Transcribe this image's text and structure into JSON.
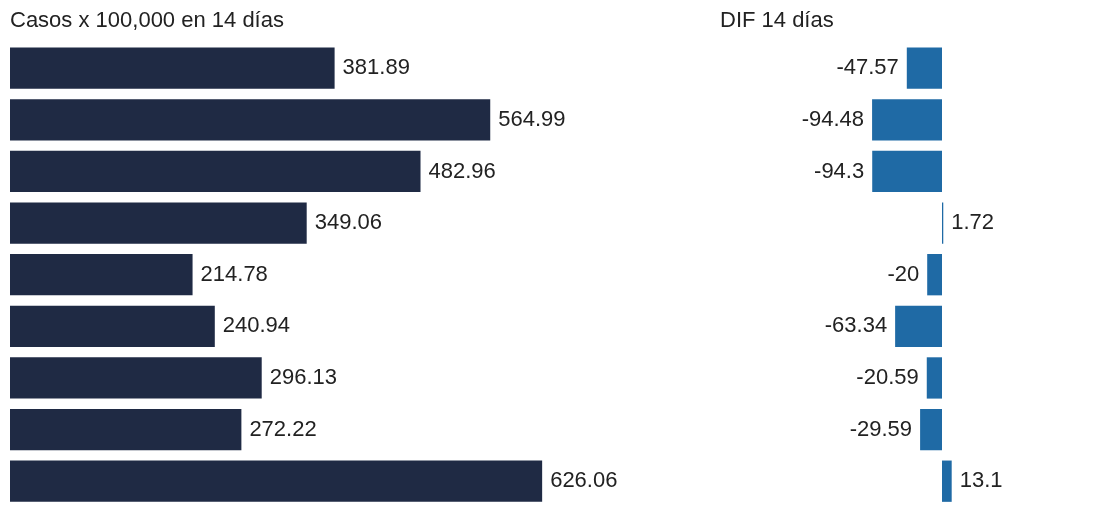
{
  "chart_data": [
    {
      "type": "bar",
      "orientation": "horizontal",
      "title": "Casos x 100,000 en 14 días",
      "categories": [
        null,
        null,
        null,
        null,
        null,
        null,
        null,
        null,
        null
      ],
      "values": [
        381.89,
        564.99,
        482.96,
        349.06,
        214.78,
        240.94,
        296.13,
        272.22,
        626.06
      ],
      "color": "#1f2a44",
      "data_labels": true,
      "tick_labels": false,
      "grid": false,
      "legend": false
    },
    {
      "type": "bar",
      "orientation": "horizontal",
      "title": "DIF 14 días",
      "categories": [
        null,
        null,
        null,
        null,
        null,
        null,
        null,
        null,
        null
      ],
      "values": [
        -47.57,
        -94.48,
        -94.3,
        1.72,
        -20,
        -63.34,
        -20.59,
        -29.59,
        13.1
      ],
      "color": "#1f6aa5",
      "data_labels": true,
      "tick_labels": false,
      "grid": false,
      "legend": false
    }
  ]
}
